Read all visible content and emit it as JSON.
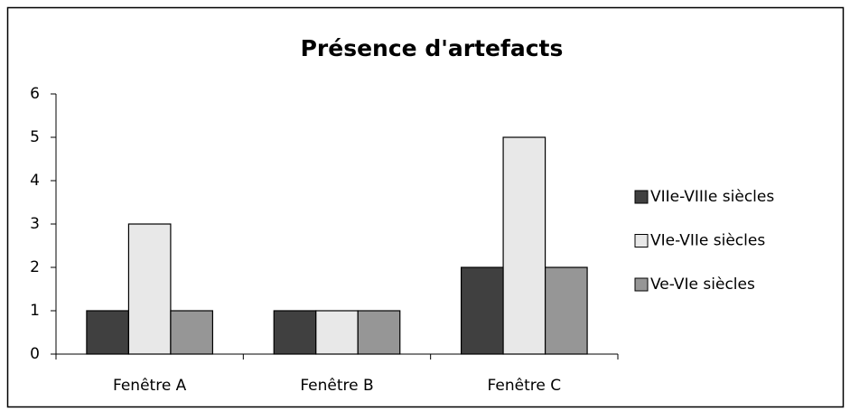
{
  "chart_data": {
    "type": "bar",
    "title": "Présence d'artefacts",
    "categories": [
      "Fenêtre A",
      "Fenêtre B",
      "Fenêtre C"
    ],
    "series": [
      {
        "name": "VIIe-VIIIe siècles",
        "color": "#404040",
        "values": [
          1,
          1,
          2
        ]
      },
      {
        "name": "VIe-VIIe siècles",
        "color": "#e8e8e8",
        "values": [
          3,
          1,
          5
        ]
      },
      {
        "name": "Ve-VIe siècles",
        "color": "#969696",
        "values": [
          1,
          1,
          2
        ]
      }
    ],
    "ylim": [
      0,
      6
    ],
    "yticks": [
      0,
      1,
      2,
      3,
      4,
      5,
      6
    ],
    "grid": false,
    "legend": "right"
  }
}
